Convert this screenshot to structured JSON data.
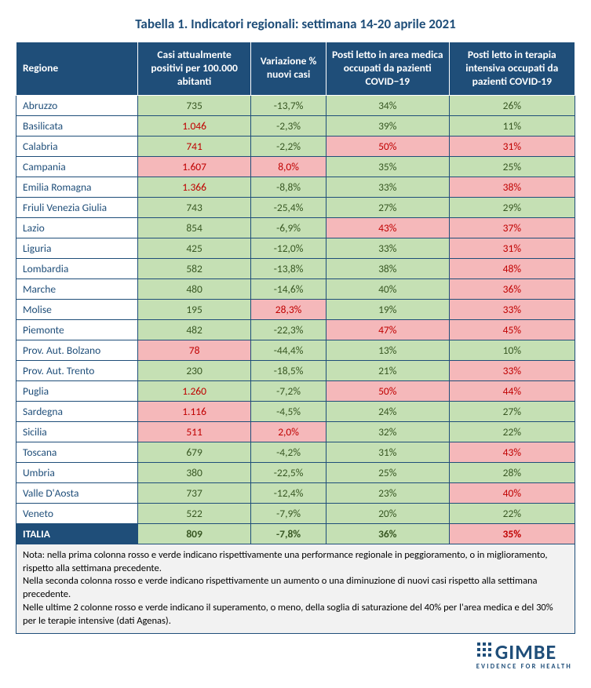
{
  "colors": {
    "header_bg": "#1f4e79",
    "title_color": "#1f4e79",
    "border": "#1f4e79",
    "green": "#c5e0b4",
    "red": "#f5b8ba",
    "green_text": "#385723",
    "red_text": "#c00000",
    "note_bg": "#f2f2f2",
    "logo": "#1f4e79"
  },
  "title": "Tabella 1. Indicatori regionali: settimana 14-20 aprile 2021",
  "headers": [
    "Regione",
    "Casi attualmente positivi per 100.000 abitanti",
    "Variazione % nuovi casi",
    "Posti letto in area medica occupati da pazienti COVID−19",
    "Posti letto in terapia intensiva occupati da pazienti COVID-19"
  ],
  "rows": [
    {
      "region": "Abruzzo",
      "c1": {
        "v": "735",
        "bg": "green",
        "fg": "green"
      },
      "c2": {
        "v": "-13,7%",
        "bg": "green",
        "fg": "green"
      },
      "c3": {
        "v": "34%",
        "bg": "green",
        "fg": "green"
      },
      "c4": {
        "v": "26%",
        "bg": "green",
        "fg": "green"
      }
    },
    {
      "region": "Basilicata",
      "c1": {
        "v": "1.046",
        "bg": "green",
        "fg": "red"
      },
      "c2": {
        "v": "-2,3%",
        "bg": "green",
        "fg": "green"
      },
      "c3": {
        "v": "39%",
        "bg": "green",
        "fg": "green"
      },
      "c4": {
        "v": "11%",
        "bg": "green",
        "fg": "green"
      }
    },
    {
      "region": "Calabria",
      "c1": {
        "v": "741",
        "bg": "green",
        "fg": "red"
      },
      "c2": {
        "v": "-2,2%",
        "bg": "green",
        "fg": "green"
      },
      "c3": {
        "v": "50%",
        "bg": "red",
        "fg": "red"
      },
      "c4": {
        "v": "31%",
        "bg": "red",
        "fg": "red"
      }
    },
    {
      "region": "Campania",
      "c1": {
        "v": "1.607",
        "bg": "red",
        "fg": "red"
      },
      "c2": {
        "v": "8,0%",
        "bg": "red",
        "fg": "red"
      },
      "c3": {
        "v": "35%",
        "bg": "green",
        "fg": "green"
      },
      "c4": {
        "v": "25%",
        "bg": "green",
        "fg": "green"
      }
    },
    {
      "region": "Emilia Romagna",
      "c1": {
        "v": "1.366",
        "bg": "green",
        "fg": "red"
      },
      "c2": {
        "v": "-8,8%",
        "bg": "green",
        "fg": "green"
      },
      "c3": {
        "v": "33%",
        "bg": "green",
        "fg": "green"
      },
      "c4": {
        "v": "38%",
        "bg": "red",
        "fg": "red"
      }
    },
    {
      "region": "Friuli Venezia Giulia",
      "c1": {
        "v": "743",
        "bg": "green",
        "fg": "green"
      },
      "c2": {
        "v": "-25,4%",
        "bg": "green",
        "fg": "green"
      },
      "c3": {
        "v": "27%",
        "bg": "green",
        "fg": "green"
      },
      "c4": {
        "v": "29%",
        "bg": "green",
        "fg": "green"
      }
    },
    {
      "region": "Lazio",
      "c1": {
        "v": "854",
        "bg": "green",
        "fg": "green"
      },
      "c2": {
        "v": "-6,9%",
        "bg": "green",
        "fg": "green"
      },
      "c3": {
        "v": "43%",
        "bg": "red",
        "fg": "red"
      },
      "c4": {
        "v": "37%",
        "bg": "red",
        "fg": "red"
      }
    },
    {
      "region": "Liguria",
      "c1": {
        "v": "425",
        "bg": "green",
        "fg": "green"
      },
      "c2": {
        "v": "-12,0%",
        "bg": "green",
        "fg": "green"
      },
      "c3": {
        "v": "33%",
        "bg": "green",
        "fg": "green"
      },
      "c4": {
        "v": "31%",
        "bg": "red",
        "fg": "red"
      }
    },
    {
      "region": "Lombardia",
      "c1": {
        "v": "582",
        "bg": "green",
        "fg": "green"
      },
      "c2": {
        "v": "-13,8%",
        "bg": "green",
        "fg": "green"
      },
      "c3": {
        "v": "38%",
        "bg": "green",
        "fg": "green"
      },
      "c4": {
        "v": "48%",
        "bg": "red",
        "fg": "red"
      }
    },
    {
      "region": "Marche",
      "c1": {
        "v": "480",
        "bg": "green",
        "fg": "green"
      },
      "c2": {
        "v": "-14,6%",
        "bg": "green",
        "fg": "green"
      },
      "c3": {
        "v": "40%",
        "bg": "green",
        "fg": "green"
      },
      "c4": {
        "v": "36%",
        "bg": "red",
        "fg": "red"
      }
    },
    {
      "region": "Molise",
      "c1": {
        "v": "195",
        "bg": "green",
        "fg": "green"
      },
      "c2": {
        "v": "28,3%",
        "bg": "red",
        "fg": "red"
      },
      "c3": {
        "v": "19%",
        "bg": "green",
        "fg": "green"
      },
      "c4": {
        "v": "33%",
        "bg": "red",
        "fg": "red"
      }
    },
    {
      "region": "Piemonte",
      "c1": {
        "v": "482",
        "bg": "green",
        "fg": "green"
      },
      "c2": {
        "v": "-22,3%",
        "bg": "green",
        "fg": "green"
      },
      "c3": {
        "v": "47%",
        "bg": "red",
        "fg": "red"
      },
      "c4": {
        "v": "45%",
        "bg": "red",
        "fg": "red"
      }
    },
    {
      "region": "Prov. Aut. Bolzano",
      "c1": {
        "v": "78",
        "bg": "red",
        "fg": "red"
      },
      "c2": {
        "v": "-44,4%",
        "bg": "green",
        "fg": "green"
      },
      "c3": {
        "v": "13%",
        "bg": "green",
        "fg": "green"
      },
      "c4": {
        "v": "10%",
        "bg": "green",
        "fg": "green"
      }
    },
    {
      "region": "Prov. Aut. Trento",
      "c1": {
        "v": "230",
        "bg": "green",
        "fg": "green"
      },
      "c2": {
        "v": "-18,5%",
        "bg": "green",
        "fg": "green"
      },
      "c3": {
        "v": "21%",
        "bg": "green",
        "fg": "green"
      },
      "c4": {
        "v": "33%",
        "bg": "red",
        "fg": "red"
      }
    },
    {
      "region": "Puglia",
      "c1": {
        "v": "1.260",
        "bg": "green",
        "fg": "red"
      },
      "c2": {
        "v": "-7,2%",
        "bg": "green",
        "fg": "green"
      },
      "c3": {
        "v": "50%",
        "bg": "red",
        "fg": "red"
      },
      "c4": {
        "v": "44%",
        "bg": "red",
        "fg": "red"
      }
    },
    {
      "region": "Sardegna",
      "c1": {
        "v": "1.116",
        "bg": "red",
        "fg": "red"
      },
      "c2": {
        "v": "-4,5%",
        "bg": "green",
        "fg": "green"
      },
      "c3": {
        "v": "24%",
        "bg": "green",
        "fg": "green"
      },
      "c4": {
        "v": "27%",
        "bg": "green",
        "fg": "green"
      }
    },
    {
      "region": "Sicilia",
      "c1": {
        "v": "511",
        "bg": "red",
        "fg": "red"
      },
      "c2": {
        "v": "2,0%",
        "bg": "red",
        "fg": "red"
      },
      "c3": {
        "v": "32%",
        "bg": "green",
        "fg": "green"
      },
      "c4": {
        "v": "22%",
        "bg": "green",
        "fg": "green"
      }
    },
    {
      "region": "Toscana",
      "c1": {
        "v": "679",
        "bg": "green",
        "fg": "green"
      },
      "c2": {
        "v": "-4,2%",
        "bg": "green",
        "fg": "green"
      },
      "c3": {
        "v": "31%",
        "bg": "green",
        "fg": "green"
      },
      "c4": {
        "v": "43%",
        "bg": "red",
        "fg": "red"
      }
    },
    {
      "region": "Umbria",
      "c1": {
        "v": "380",
        "bg": "green",
        "fg": "green"
      },
      "c2": {
        "v": "-22,5%",
        "bg": "green",
        "fg": "green"
      },
      "c3": {
        "v": "25%",
        "bg": "green",
        "fg": "green"
      },
      "c4": {
        "v": "28%",
        "bg": "green",
        "fg": "green"
      }
    },
    {
      "region": "Valle D'Aosta",
      "c1": {
        "v": "737",
        "bg": "green",
        "fg": "green"
      },
      "c2": {
        "v": "-12,4%",
        "bg": "green",
        "fg": "green"
      },
      "c3": {
        "v": "23%",
        "bg": "green",
        "fg": "green"
      },
      "c4": {
        "v": "40%",
        "bg": "red",
        "fg": "red"
      }
    },
    {
      "region": "Veneto",
      "c1": {
        "v": "522",
        "bg": "green",
        "fg": "green"
      },
      "c2": {
        "v": "-7,9%",
        "bg": "green",
        "fg": "green"
      },
      "c3": {
        "v": "20%",
        "bg": "green",
        "fg": "green"
      },
      "c4": {
        "v": "22%",
        "bg": "green",
        "fg": "green"
      }
    }
  ],
  "total": {
    "region": "ITALIA",
    "c1": {
      "v": "809",
      "bg": "green",
      "fg": "green"
    },
    "c2": {
      "v": "-7,8%",
      "bg": "green",
      "fg": "green"
    },
    "c3": {
      "v": "36%",
      "bg": "green",
      "fg": "green"
    },
    "c4": {
      "v": "35%",
      "bg": "red",
      "fg": "red"
    }
  },
  "note": "Nota: nella prima colonna rosso e verde indicano rispettivamente una performance regionale in peggioramento, o in miglioramento, rispetto alla settimana precedente.\nNella seconda colonna rosso e verde indicano rispettivamente un aumento o una diminuzione di nuovi casi rispetto alla settimana precedente.\nNelle ultime 2 colonne rosso e verde indicano il superamento, o meno, della soglia di saturazione del 40% per l'area medica e del 30% per le terapie intensive (dati Agenas).",
  "logo": {
    "main": "GIMBE",
    "sub": "EVIDENCE FOR HEALTH"
  }
}
